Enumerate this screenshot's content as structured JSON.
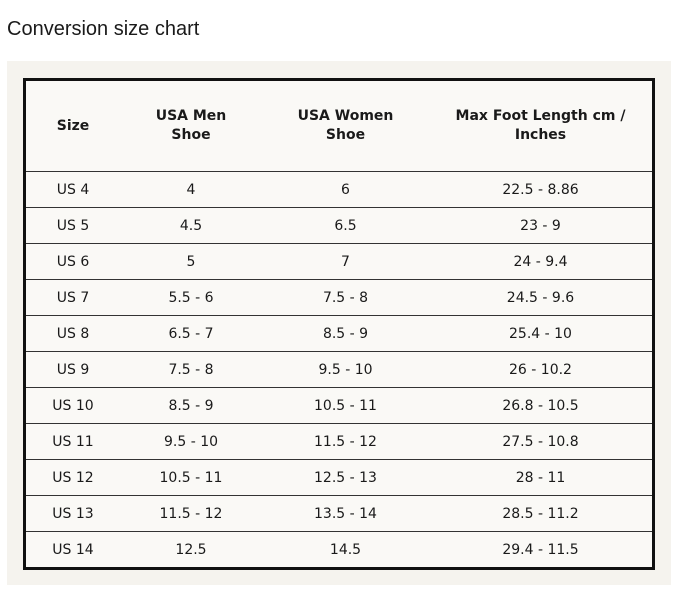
{
  "title": "Conversion size chart",
  "table": {
    "header": [
      "Size",
      "USA Men\nShoe",
      "USA Women\nShoe",
      "Max Foot Length cm /\nInches"
    ],
    "rows": [
      [
        "US 4",
        "4",
        "6",
        "22.5 - 8.86"
      ],
      [
        "US 5",
        "4.5",
        "6.5",
        "23 - 9"
      ],
      [
        "US 6",
        "5",
        "7",
        "24 - 9.4"
      ],
      [
        "US 7",
        "5.5 - 6",
        "7.5 - 8",
        "24.5 - 9.6"
      ],
      [
        "US 8",
        "6.5 - 7",
        "8.5 - 9",
        "25.4 - 10"
      ],
      [
        "US 9",
        "7.5 - 8",
        "9.5 - 10",
        "26 - 10.2"
      ],
      [
        "US 10",
        "8.5 - 9",
        "10.5 - 11",
        "26.8 - 10.5"
      ],
      [
        "US 11",
        "9.5 - 10",
        "11.5 - 12",
        "27.5 - 10.8"
      ],
      [
        "US 12",
        "10.5 - 11",
        "12.5 - 13",
        "28 - 11"
      ],
      [
        "US 13",
        "11.5 - 12",
        "13.5 - 14",
        "28.5 - 11.2"
      ],
      [
        "US 14",
        "12.5",
        "14.5",
        "29.4 - 11.5"
      ]
    ]
  }
}
